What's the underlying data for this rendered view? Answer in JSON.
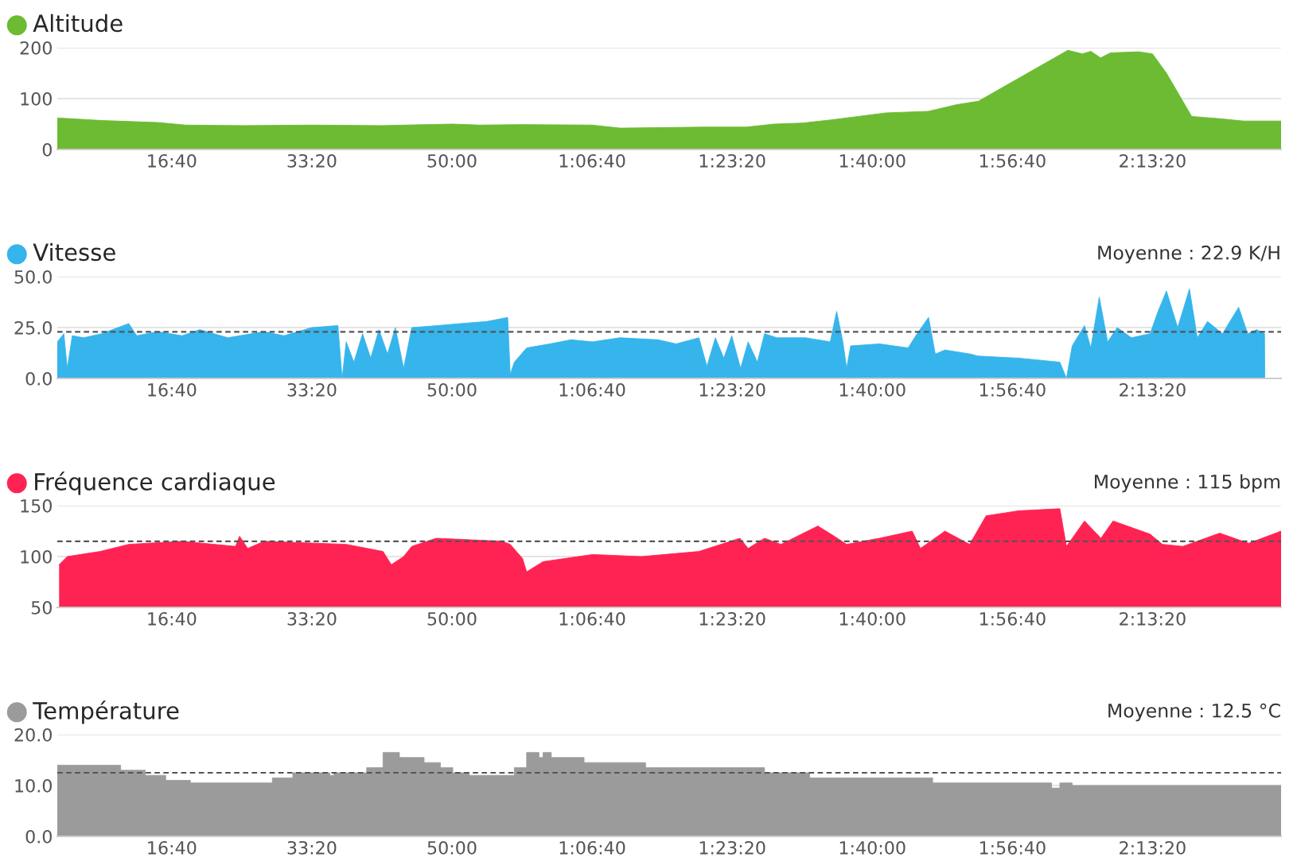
{
  "chart_data": [
    {
      "type": "area",
      "title": "Altitude",
      "grid": "y",
      "xlim": [
        183,
        8918
      ],
      "ylim": [
        0,
        200
      ],
      "xticks": [
        {
          "value": 1000,
          "label": "16:40"
        },
        {
          "value": 2000,
          "label": "33:20"
        },
        {
          "value": 3000,
          "label": "50:00"
        },
        {
          "value": 4000,
          "label": "1:06:40"
        },
        {
          "value": 5000,
          "label": "1:23:20"
        },
        {
          "value": 6000,
          "label": "1:40:00"
        },
        {
          "value": 7000,
          "label": "1:56:40"
        },
        {
          "value": 8000,
          "label": "2:13:20"
        }
      ],
      "yticks": [
        0,
        100,
        200
      ],
      "x": [
        183,
        500,
        900,
        1100,
        1500,
        2000,
        2500,
        3000,
        3200,
        3500,
        4000,
        4200,
        4800,
        5100,
        5300,
        5500,
        5700,
        5900,
        6100,
        6400,
        6600,
        6758,
        7396,
        7500,
        7560,
        7630,
        7700,
        7900,
        8000,
        8100,
        8280,
        8500,
        8650,
        8918
      ],
      "series": [
        {
          "color": "#6cbb32",
          "values": [
            62,
            57,
            53,
            48,
            47,
            48,
            47,
            50,
            48,
            49,
            48,
            42,
            44,
            44,
            50,
            52,
            58,
            65,
            72,
            75,
            88,
            95,
            195,
            188,
            193,
            180,
            190,
            192,
            188,
            150,
            65,
            60,
            56,
            56
          ]
        }
      ]
    },
    {
      "type": "area",
      "title": "Vitesse",
      "grid": "y",
      "xlim": [
        183,
        8918
      ],
      "ylim": [
        0,
        50
      ],
      "xticks": [
        {
          "value": 1000,
          "label": "16:40"
        },
        {
          "value": 2000,
          "label": "33:20"
        },
        {
          "value": 3000,
          "label": "50:00"
        },
        {
          "value": 4000,
          "label": "1:06:40"
        },
        {
          "value": 5000,
          "label": "1:23:20"
        },
        {
          "value": 6000,
          "label": "1:40:00"
        },
        {
          "value": 7000,
          "label": "1:56:40"
        },
        {
          "value": 8000,
          "label": "2:13:20"
        }
      ],
      "yticks": [
        {
          "value": 0,
          "label": "0.0"
        },
        {
          "value": 25,
          "label": "25.0"
        },
        {
          "value": 50,
          "label": "50.0"
        }
      ],
      "ref_lines": [
        {
          "axis": "y",
          "value": 22.9,
          "label": "Moyenne : 22.9 K/H",
          "line_style": "dashed"
        }
      ],
      "x": [
        183,
        230,
        254,
        290,
        371,
        500,
        693,
        750,
        900,
        1074,
        1200,
        1400,
        1660,
        1800,
        2000,
        2186,
        2216,
        2245,
        2300,
        2362,
        2420,
        2479,
        2540,
        2596,
        2655,
        2713,
        2900,
        3065,
        3250,
        3398,
        3416,
        3445,
        3533,
        3700,
        3850,
        4002,
        4200,
        4470,
        4600,
        4763,
        4820,
        4880,
        4940,
        4997,
        5060,
        5114,
        5180,
        5231,
        5319,
        5524,
        5700,
        5746,
        5790,
        5817,
        5846,
        6051,
        6256,
        6320,
        6402,
        6450,
        6519,
        6700,
        6753,
        7046,
        7339,
        7386,
        7427,
        7515,
        7560,
        7620,
        7680,
        7749,
        7850,
        7983,
        8040,
        8100,
        8180,
        8264,
        8320,
        8393,
        8500,
        8615,
        8680,
        8744,
        8800,
        8802,
        8918
      ],
      "series": [
        {
          "color": "#36b4ec",
          "values": [
            18,
            22,
            5,
            21,
            20,
            22,
            27,
            21,
            23,
            21,
            24,
            20,
            23,
            21,
            25,
            26,
            0,
            18,
            8,
            22,
            10,
            24,
            12,
            25,
            5,
            25,
            26,
            27,
            28,
            30,
            2,
            8,
            15,
            17,
            19,
            18,
            20,
            19,
            17,
            20,
            6,
            20,
            10,
            21,
            5,
            18,
            8,
            22,
            20,
            20,
            18,
            33,
            18,
            5,
            16,
            17,
            15,
            22,
            30,
            12,
            14,
            12,
            11,
            10,
            8,
            0,
            16,
            26,
            15,
            40,
            18,
            25,
            20,
            22,
            33,
            43,
            25,
            44,
            20,
            28,
            22,
            35,
            22,
            24,
            22,
            0,
            0
          ]
        }
      ]
    },
    {
      "type": "area",
      "title": "Fréquence cardiaque",
      "grid": "y",
      "xlim": [
        183,
        8918
      ],
      "ylim": [
        50,
        150
      ],
      "xticks": [
        {
          "value": 1000,
          "label": "16:40"
        },
        {
          "value": 2000,
          "label": "33:20"
        },
        {
          "value": 3000,
          "label": "50:00"
        },
        {
          "value": 4000,
          "label": "1:06:40"
        },
        {
          "value": 5000,
          "label": "1:23:20"
        },
        {
          "value": 6000,
          "label": "1:40:00"
        },
        {
          "value": 7000,
          "label": "1:56:40"
        },
        {
          "value": 8000,
          "label": "2:13:20"
        }
      ],
      "yticks": [
        50,
        100,
        150
      ],
      "ref_lines": [
        {
          "axis": "y",
          "value": 115,
          "label": "Moyenne : 115 bpm",
          "line_style": "dashed"
        }
      ],
      "x": [
        196,
        254,
        489,
        693,
        1074,
        1455,
        1484,
        1542,
        1660,
        2245,
        2508,
        2567,
        2655,
        2713,
        2889,
        3357,
        3416,
        3504,
        3533,
        3650,
        4002,
        4353,
        4763,
        5055,
        5114,
        5231,
        5348,
        5612,
        5729,
        5817,
        6051,
        6285,
        6344,
        6519,
        6695,
        6812,
        7046,
        7339,
        7386,
        7515,
        7632,
        7719,
        7983,
        8071,
        8217,
        8480,
        8686,
        8861,
        8918
      ],
      "series": [
        {
          "color": "#ff2353",
          "values": [
            92,
            100,
            105,
            112,
            115,
            110,
            120,
            108,
            115,
            112,
            105,
            92,
            100,
            110,
            118,
            115,
            112,
            98,
            85,
            95,
            102,
            100,
            105,
            118,
            108,
            118,
            112,
            130,
            120,
            112,
            118,
            125,
            108,
            125,
            112,
            140,
            145,
            147,
            110,
            135,
            118,
            135,
            122,
            112,
            110,
            123,
            113,
            122,
            125
          ]
        }
      ]
    },
    {
      "type": "area",
      "title": "Température",
      "grid": "y",
      "xlim": [
        183,
        8918
      ],
      "ylim": [
        0,
        20
      ],
      "xticks": [
        {
          "value": 1000,
          "label": "16:40"
        },
        {
          "value": 2000,
          "label": "33:20"
        },
        {
          "value": 3000,
          "label": "50:00"
        },
        {
          "value": 4000,
          "label": "1:06:40"
        },
        {
          "value": 5000,
          "label": "1:23:20"
        },
        {
          "value": 6000,
          "label": "1:40:00"
        },
        {
          "value": 7000,
          "label": "1:56:40"
        },
        {
          "value": 8000,
          "label": "2:13:20"
        }
      ],
      "yticks": [
        {
          "value": 0,
          "label": "0.0"
        },
        {
          "value": 10,
          "label": "10.0"
        },
        {
          "value": 20,
          "label": "20.0"
        }
      ],
      "ref_lines": [
        {
          "axis": "y",
          "value": 12.5,
          "label": "Moyenne : 12.5 °C",
          "line_style": "dashed"
        }
      ],
      "x": [
        183,
        635,
        635,
        811,
        811,
        957,
        957,
        1133,
        1133,
        1718,
        1718,
        1864,
        1864,
        2128,
        2128,
        2157,
        2157,
        2391,
        2391,
        2508,
        2508,
        2625,
        2625,
        2801,
        2801,
        2918,
        2918,
        3006,
        3006,
        3123,
        3123,
        3445,
        3445,
        3533,
        3533,
        3621,
        3621,
        3650,
        3650,
        3709,
        3709,
        3943,
        3943,
        4382,
        4382,
        5231,
        5231,
        5553,
        5553,
        6431,
        6431,
        7280,
        7280,
        7339,
        7339,
        7427,
        7427,
        8918
      ],
      "series": [
        {
          "color": "#9b9b9b",
          "values": [
            14,
            14,
            13,
            13,
            12,
            12,
            11,
            11,
            10.5,
            10.5,
            11.5,
            11.5,
            12.5,
            12.5,
            12,
            12,
            12.5,
            12.5,
            13.5,
            13.5,
            16.5,
            16.5,
            15.5,
            15.5,
            14.5,
            14.5,
            13.5,
            13.5,
            12.5,
            12.5,
            12,
            12,
            13.5,
            13.5,
            16.5,
            16.5,
            15.5,
            15.5,
            16.5,
            16.5,
            15.5,
            15.5,
            14.5,
            14.5,
            13.5,
            13.5,
            12.5,
            12.5,
            11.5,
            11.5,
            10.5,
            10.5,
            9.5,
            9.5,
            10.5,
            10.5,
            10,
            10
          ]
        }
      ]
    }
  ]
}
